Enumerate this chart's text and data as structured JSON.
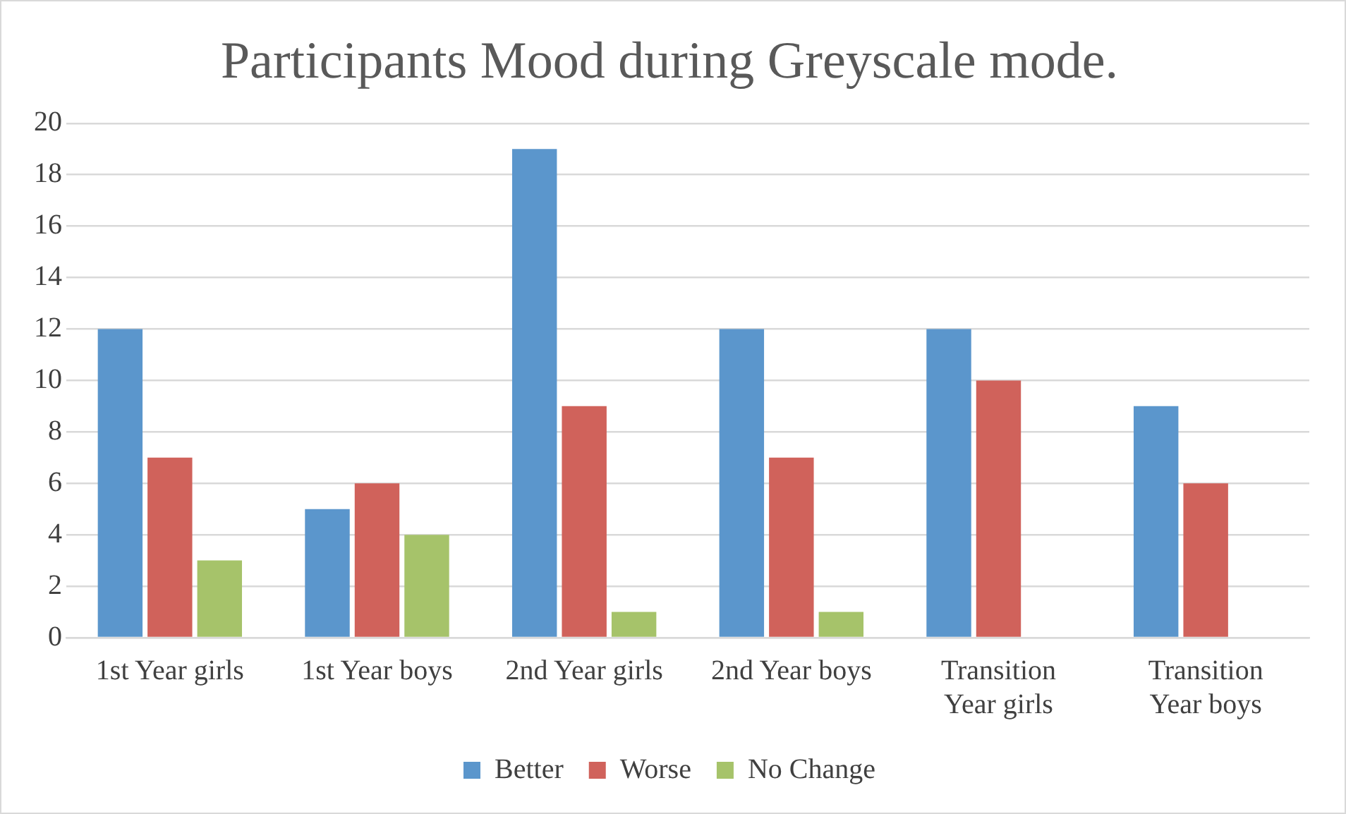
{
  "chart_data": {
    "type": "bar",
    "title": "Participants Mood during Greyscale mode.",
    "categories": [
      "1st Year girls",
      "1st Year boys",
      "2nd Year girls",
      "2nd Year boys",
      "Transition Year girls",
      "Transition Year boys"
    ],
    "series": [
      {
        "name": "Better",
        "color": "#5b96cc",
        "values": [
          12,
          5,
          19,
          12,
          12,
          9
        ]
      },
      {
        "name": "Worse",
        "color": "#d0625b",
        "values": [
          7,
          6,
          9,
          7,
          10,
          6
        ]
      },
      {
        "name": "No Change",
        "color": "#a6c36a",
        "values": [
          3,
          4,
          1,
          1,
          0,
          0
        ]
      }
    ],
    "ylim": [
      0,
      20
    ],
    "yticks": [
      0,
      2,
      4,
      6,
      8,
      10,
      12,
      14,
      16,
      18,
      20
    ],
    "grid": "y",
    "legend": "bottom"
  }
}
